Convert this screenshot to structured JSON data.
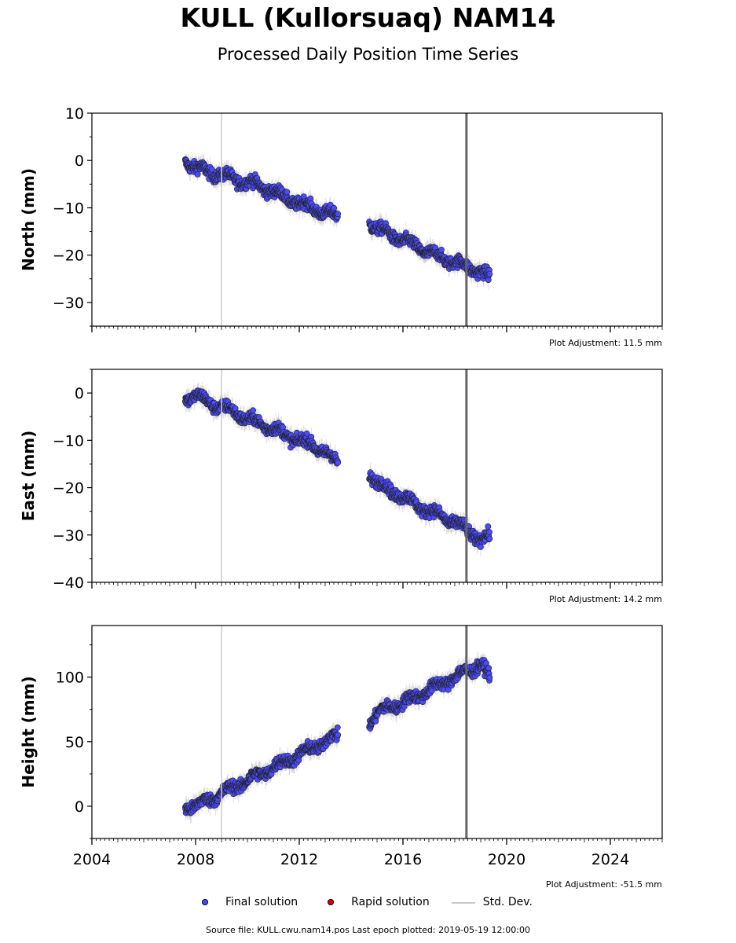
{
  "title": "KULL (Kullorsuaq) NAM14",
  "subtitle": "Processed Daily Position Time Series",
  "legend": {
    "final": "Final solution",
    "rapid": "Rapid solution",
    "std": "Std. Dev."
  },
  "footer": "Source file: KULL.cwu.nam14.pos  Last epoch plotted: 2019-05-19 12:00:00",
  "colors": {
    "final": "#4a4aff",
    "rapid": "#e00000",
    "std": "#c8c8c8",
    "vline_light": "#cccccc",
    "vline_dark": "#666666"
  },
  "chart_data": [
    {
      "type": "scatter",
      "title": "",
      "ylabel": "North (mm)",
      "xlim": [
        2004,
        2026
      ],
      "ylim": [
        -35,
        10
      ],
      "yticks": [
        10,
        0,
        -10,
        -20,
        -30
      ],
      "xticks": [
        2004,
        2008,
        2012,
        2016,
        2020,
        2024
      ],
      "show_xtick_labels": false,
      "grid": false,
      "annotation": "Plot Adjustment: 11.5 mm",
      "vlines": [
        2009.0,
        2018.45
      ],
      "series": [
        {
          "legend": "Final solution",
          "segments": [
            {
              "x": [
                2007.6,
                2008.0,
                2008.5,
                2009.0,
                2009.5,
                2010.0,
                2010.5,
                2011.0,
                2011.5,
                2012.0,
                2012.5,
                2013.0,
                2013.5
              ],
              "y": [
                0,
                -1.5,
                -2.5,
                -3.0,
                -4.0,
                -4.5,
                -5.5,
                -6.5,
                -8.0,
                -9.0,
                -10.0,
                -11.0,
                -12.0
              ]
            },
            {
              "x": [
                2014.7,
                2015.0,
                2015.5,
                2016.0,
                2016.5,
                2017.0,
                2017.5,
                2018.0,
                2018.5,
                2019.0,
                2019.35
              ],
              "y": [
                -13.0,
                -14.5,
                -15.5,
                -17.0,
                -18.0,
                -19.5,
                -20.5,
                -21.5,
                -22.5,
                -23.5,
                -25.0
              ]
            }
          ]
        }
      ]
    },
    {
      "type": "scatter",
      "title": "",
      "ylabel": "East (mm)",
      "xlim": [
        2004,
        2026
      ],
      "ylim": [
        -40,
        5
      ],
      "yticks": [
        0,
        -10,
        -20,
        -30,
        -40
      ],
      "xticks": [
        2004,
        2008,
        2012,
        2016,
        2020,
        2024
      ],
      "show_xtick_labels": false,
      "grid": false,
      "annotation": "Plot Adjustment: 14.2 mm",
      "vlines": [
        2009.0,
        2018.45
      ],
      "series": [
        {
          "legend": "Final solution",
          "segments": [
            {
              "x": [
                2007.6,
                2008.0,
                2008.5,
                2009.0,
                2009.5,
                2010.0,
                2010.5,
                2011.0,
                2011.5,
                2012.0,
                2012.5,
                2013.0,
                2013.5
              ],
              "y": [
                -1.0,
                -0.5,
                -2.0,
                -3.0,
                -4.0,
                -5.5,
                -6.5,
                -7.5,
                -9.0,
                -10.0,
                -11.0,
                -12.5,
                -15.0
              ]
            },
            {
              "x": [
                2014.7,
                2015.0,
                2015.5,
                2016.0,
                2016.5,
                2017.0,
                2017.5,
                2018.0,
                2018.5,
                2019.0,
                2019.35
              ],
              "y": [
                -17.0,
                -19.0,
                -20.5,
                -22.0,
                -23.5,
                -25.0,
                -26.0,
                -27.5,
                -29.0,
                -31.0,
                -30.5
              ]
            }
          ]
        }
      ]
    },
    {
      "type": "scatter",
      "title": "",
      "ylabel": "Height (mm)",
      "xlim": [
        2004,
        2026
      ],
      "ylim": [
        -25,
        140
      ],
      "yticks": [
        100,
        50,
        0
      ],
      "xticks": [
        2004,
        2008,
        2012,
        2016,
        2020,
        2024
      ],
      "show_xtick_labels": true,
      "grid": false,
      "annotation": "Plot Adjustment: -51.5 mm",
      "vlines": [
        2009.0,
        2018.45
      ],
      "series": [
        {
          "legend": "Final solution",
          "segments": [
            {
              "x": [
                2007.6,
                2008.0,
                2008.5,
                2009.0,
                2009.5,
                2010.0,
                2010.5,
                2011.0,
                2011.5,
                2012.0,
                2012.5,
                2013.0,
                2013.5
              ],
              "y": [
                0,
                0,
                5,
                10,
                15,
                20,
                25,
                30,
                35,
                40,
                45,
                50,
                55
              ]
            },
            {
              "x": [
                2014.7,
                2015.0,
                2015.5,
                2016.0,
                2016.5,
                2017.0,
                2017.5,
                2018.0,
                2018.5,
                2019.0,
                2019.35
              ],
              "y": [
                65,
                72,
                77,
                80,
                85,
                90,
                95,
                100,
                105,
                110,
                100
              ]
            }
          ]
        }
      ]
    }
  ]
}
